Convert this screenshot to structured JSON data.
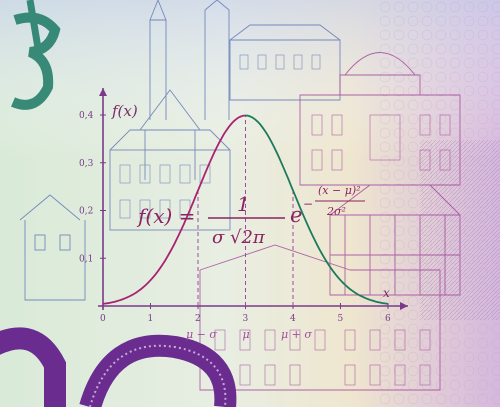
{
  "formula": {
    "lhs": "f(x) =",
    "numerator": "1",
    "denominator": "σ √2π",
    "base": "e",
    "exp_num": "(x − μ)²",
    "exp_den": "2σ²",
    "exp_sign": "−"
  },
  "plot": {
    "y_axis_label": "f(x)",
    "x_axis_label": "x",
    "x_ticks": [
      "0",
      "1",
      "2",
      "3",
      "4",
      "5",
      "6"
    ],
    "y_ticks": [
      "0,1",
      "0,2",
      "0,3",
      "0,4"
    ],
    "markers": [
      "μ − σ",
      "μ",
      "μ + σ"
    ]
  },
  "chart_data": {
    "type": "line",
    "xlabel": "x",
    "ylabel": "f(x)",
    "xlim": [
      0,
      6
    ],
    "ylim": [
      0,
      0.4
    ],
    "mu": 3,
    "sigma": 1,
    "series": [
      {
        "x": [
          0,
          0.5,
          1,
          1.5,
          2,
          2.5,
          3,
          3.5,
          4,
          4.5,
          5,
          5.5,
          6
        ],
        "values": [
          0.004,
          0.018,
          0.054,
          0.13,
          0.242,
          0.352,
          0.399,
          0.352,
          0.242,
          0.13,
          0.054,
          0.018,
          0.004
        ]
      }
    ]
  },
  "colors": {
    "curve_left": "#a8236f",
    "curve_right": "#1d7a5c",
    "axes": "#7a3a8a",
    "ink_blue": "#6b7fb8",
    "ink_magenta": "#a24a9c"
  }
}
